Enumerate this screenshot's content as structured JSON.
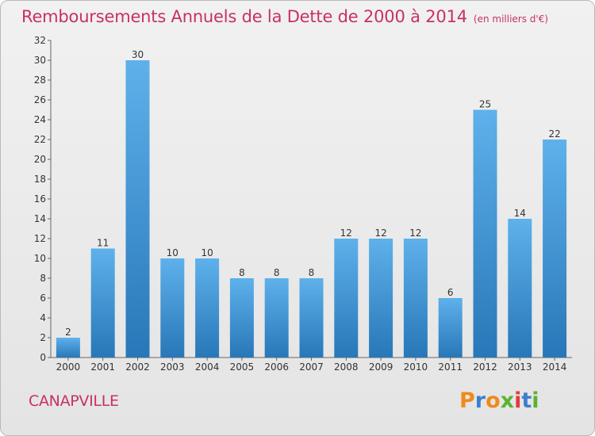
{
  "header": {
    "title": "Remboursements Annuels de la Dette de 2000 à 2014",
    "unit": "(en milliers d'€)"
  },
  "footer": {
    "commune": "CANAPVILLE",
    "logo_text": "Proxiti",
    "logo_colors": [
      "#f08a1c",
      "#3a7fcf",
      "#f08a1c",
      "#5bb331",
      "#e23b3b",
      "#3a7fcf",
      "#5bb331"
    ]
  },
  "colors": {
    "bar_light": "#5eb1eb",
    "bar_dark": "#2877b8",
    "text_accent": "#c7325e",
    "axis": "#555555"
  },
  "chart_data": {
    "type": "bar",
    "title": "Remboursements Annuels de la Dette de 2000 à 2014",
    "xlabel": "",
    "ylabel": "",
    "categories": [
      "2000",
      "2001",
      "2002",
      "2003",
      "2004",
      "2005",
      "2006",
      "2007",
      "2008",
      "2009",
      "2010",
      "2011",
      "2012",
      "2013",
      "2014"
    ],
    "values": [
      2,
      11,
      30,
      10,
      10,
      8,
      8,
      8,
      12,
      12,
      12,
      6,
      25,
      14,
      22
    ],
    "ylim": [
      0,
      32
    ],
    "yticks": [
      0,
      2,
      4,
      6,
      8,
      10,
      12,
      14,
      16,
      18,
      20,
      22,
      24,
      26,
      28,
      30,
      32
    ],
    "grid": false,
    "data_labels": true
  }
}
